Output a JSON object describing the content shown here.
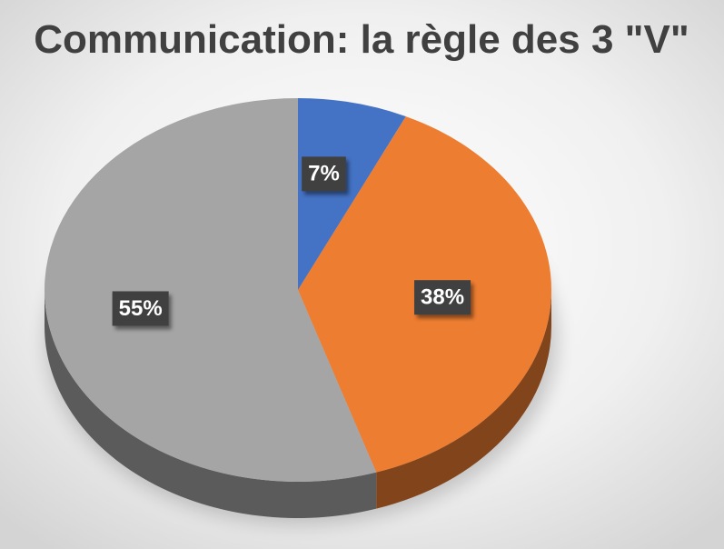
{
  "chart_data": {
    "type": "pie",
    "title": "Communication: la règle des 3 \"V\"",
    "values": [
      7,
      38,
      55
    ],
    "value_labels": [
      "7%",
      "38%",
      "55%"
    ],
    "colors": [
      "#4472c4",
      "#ed7d31",
      "#a5a5a5"
    ]
  }
}
